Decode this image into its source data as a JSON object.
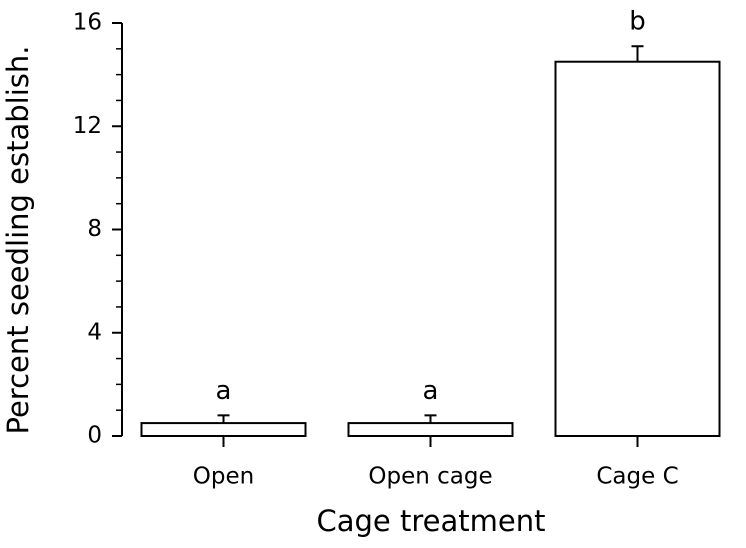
{
  "chart_data": {
    "type": "bar",
    "x_label": "Cage treatment",
    "y_label": "Percent seedling establish.",
    "categories": [
      "Open",
      "Open cage",
      "Cage C"
    ],
    "values": [
      0.5,
      0.5,
      14.5
    ],
    "errors": [
      0.3,
      0.3,
      0.6
    ],
    "significance_labels": [
      "a",
      "a",
      "b"
    ],
    "color": "#ffffff",
    "ylim": [
      0,
      16
    ],
    "yticks": [
      0,
      4,
      8,
      12,
      16
    ],
    "y_minor_ticks": [
      1,
      2,
      3,
      5,
      6,
      7,
      9,
      10,
      11,
      13,
      14,
      15
    ],
    "grid": false
  }
}
